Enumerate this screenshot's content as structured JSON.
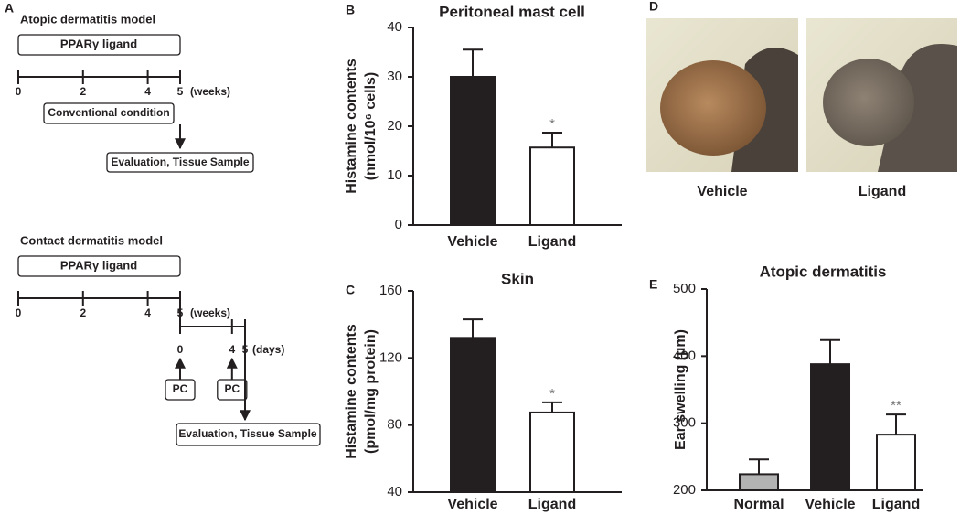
{
  "panel_a": {
    "label": "A",
    "atopic": {
      "title": "Atopic dermatitis model",
      "drug": "PPARγ ligand",
      "week_ticks": [
        0,
        2,
        4,
        5
      ],
      "week_unit": "(weeks)",
      "condition": "Conventional condition",
      "outcome": "Evaluation, Tissue Sample"
    },
    "contact": {
      "title": "Contact dermatitis model",
      "drug": "PPARγ ligand",
      "week_ticks": [
        0,
        2,
        4,
        5
      ],
      "week_unit": "(weeks)",
      "day_ticks": [
        0,
        4,
        5
      ],
      "day_unit": "(days)",
      "challenges": [
        "PC",
        "PC"
      ],
      "outcome": "Evaluation, Tissue Sample"
    }
  },
  "panel_d": {
    "label": "D",
    "captions": [
      "Vehicle",
      "Ligand"
    ]
  },
  "chart_data": [
    {
      "type": "bar",
      "panel": "B",
      "title": "Peritoneal mast cell",
      "y_label": [
        "Histamine contents",
        "(nmol/10⁶ cells)"
      ],
      "categories": [
        "Vehicle",
        "Ligand"
      ],
      "values": [
        30,
        15.7
      ],
      "errors": [
        5.5,
        3
      ],
      "colors": [
        "#231f20",
        "#ffffff"
      ],
      "significance": [
        null,
        "*"
      ],
      "ylim": [
        0,
        40
      ],
      "yticks": [
        0,
        10,
        20,
        30,
        40
      ]
    },
    {
      "type": "bar",
      "panel": "C",
      "title": "Skin",
      "y_label": [
        "Histamine contents",
        "(pmol/mg protein)"
      ],
      "categories": [
        "Vehicle",
        "Ligand"
      ],
      "values": [
        132,
        87.5
      ],
      "errors": [
        11,
        6
      ],
      "colors": [
        "#231f20",
        "#ffffff"
      ],
      "significance": [
        null,
        "*"
      ],
      "ylim": [
        40,
        160
      ],
      "yticks": [
        40,
        80,
        120,
        160
      ]
    },
    {
      "type": "bar",
      "panel": "E",
      "title": "Atopic dermatitis",
      "y_label": [
        "Ear swelling (µm)"
      ],
      "categories": [
        "Normal",
        "Vehicle",
        "Ligand"
      ],
      "values": [
        224,
        388,
        283
      ],
      "errors": [
        22,
        36,
        30
      ],
      "colors": [
        "#b3b3b3",
        "#231f20",
        "#ffffff"
      ],
      "significance": [
        null,
        null,
        "**"
      ],
      "ylim": [
        200,
        500
      ],
      "yticks": [
        200,
        300,
        400,
        500
      ]
    }
  ]
}
